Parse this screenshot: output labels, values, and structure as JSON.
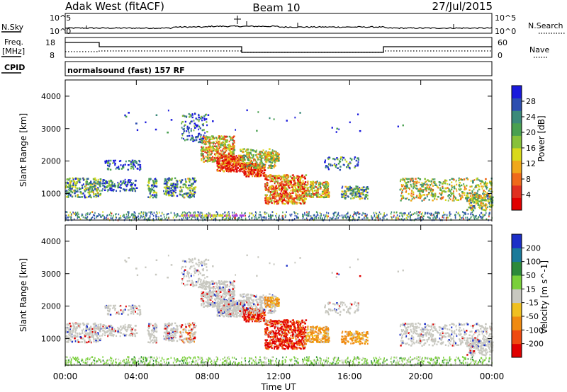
{
  "header": {
    "station": "Adak West (fitACF)",
    "beam": "Beam 10",
    "date": "27/Jul/2015"
  },
  "top_panels": {
    "nsky_label": "N.Sky",
    "nsearch_label": "N.Search",
    "nsky_ticks": [
      "10^5",
      "10^0"
    ],
    "nsearch_ticks": [
      "10^5",
      "10^0"
    ],
    "freq_label_line1": "Freq.",
    "freq_label_line2": "[MHz]",
    "freq_ticks": [
      "18",
      "8"
    ],
    "nave_label": "Nave",
    "nave_ticks": [
      "60",
      "0"
    ],
    "cpid_label": "CPID",
    "cpid_value": "normalsound (fast) 157 RF"
  },
  "chart_data": [
    {
      "type": "heatmap",
      "name": "power",
      "ylabel": "Slant Range [km]",
      "ylim": [
        180,
        4500
      ],
      "yticks": [
        "4000",
        "3000",
        "2000",
        "1000"
      ],
      "colorbar": {
        "label": "Power [dB]",
        "ticks": [
          "28",
          "24",
          "20",
          "16",
          "12",
          "8",
          "4"
        ],
        "range": [
          0,
          32
        ],
        "colors": [
          "#1a1adc",
          "#2d4fb0",
          "#3c8a7a",
          "#4aa050",
          "#88c13a",
          "#d9d91a",
          "#f0a81a",
          "#ef6a1a",
          "#e03020",
          "#e00000"
        ]
      }
    },
    {
      "type": "heatmap",
      "name": "velocity",
      "ylabel": "Slant Range [km]",
      "ylim": [
        180,
        4500
      ],
      "yticks": [
        "4000",
        "3000",
        "2000",
        "1000"
      ],
      "colorbar": {
        "label": "Velocity [m s^-1]",
        "ticks": [
          "200",
          "100",
          "50",
          "15",
          "-15",
          "-50",
          "-100",
          "-200"
        ],
        "colors": [
          "#1c2fc8",
          "#1a7a9a",
          "#2d8a3a",
          "#7ad03a",
          "#c8c8c0",
          "#f0c020",
          "#f08a10",
          "#ef4a10",
          "#e00000"
        ]
      }
    }
  ],
  "x_axis": {
    "label": "Time UT",
    "ticks": [
      "00:00",
      "04:00",
      "08:00",
      "12:00",
      "16:00",
      "20:00",
      "00:00"
    ],
    "range_hours": [
      0,
      24
    ]
  }
}
